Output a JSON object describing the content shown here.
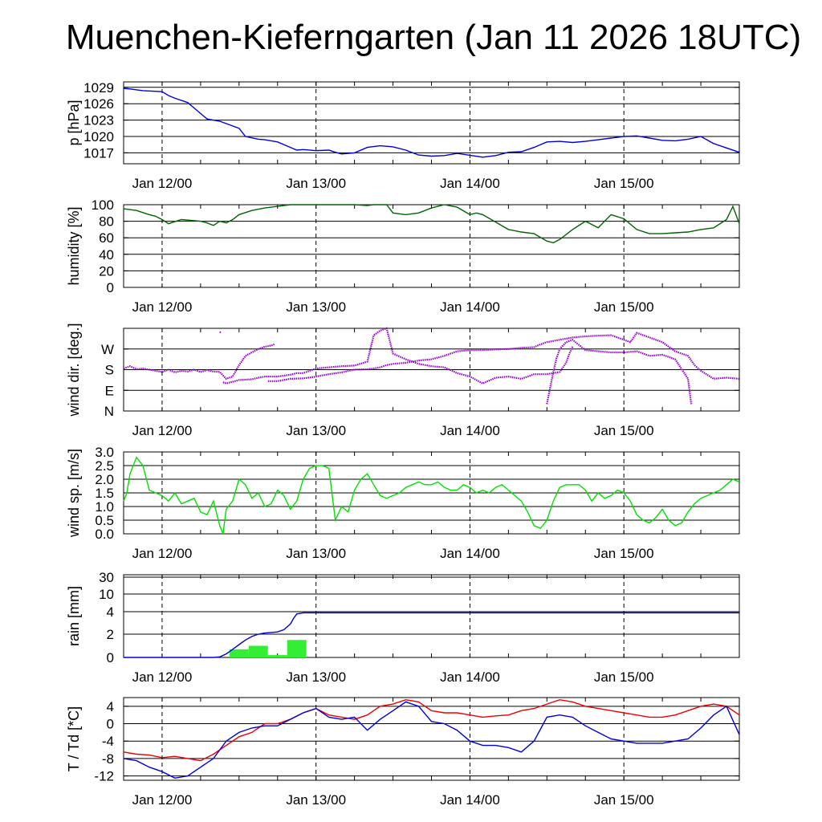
{
  "title": "Muenchen-Kieferngarten (Jan 11 2026 18UTC)",
  "x_tick_labels": [
    "Jan 12/00",
    "Jan 13/00",
    "Jan 14/00",
    "Jan 15/00"
  ],
  "colors": {
    "pressure": "#0000dd",
    "humidity": "#006400",
    "wind_dir": "#9400d3",
    "wind_speed": "#00e000",
    "rain_line": "#0000dd",
    "rain_bar": "#33ee33",
    "temperature": "#ee0000",
    "dewpoint": "#0000dd"
  },
  "chart_data": [
    {
      "type": "line",
      "id": "pressure",
      "ylabel": "p [hPa]",
      "ylim": [
        1015,
        1030
      ],
      "yticks": [
        1017,
        1020,
        1023,
        1026,
        1029
      ],
      "ytick_labels": [
        "1017",
        "1020",
        "1023",
        "1026",
        "1029"
      ],
      "x_hours": "hours from Jan 11 18UTC (0..96)",
      "series": [
        {
          "name": "pressure",
          "x": [
            0,
            1,
            3,
            6,
            7,
            8,
            10,
            11,
            12,
            13,
            15,
            18,
            19,
            21,
            22,
            24,
            26,
            27,
            28,
            30,
            32,
            33,
            34,
            36,
            38,
            40,
            42,
            44,
            46,
            48,
            50,
            52,
            56,
            58,
            60,
            62,
            64,
            66,
            68,
            70,
            72,
            74,
            76,
            78,
            80,
            82,
            84,
            86,
            88,
            90,
            92,
            94,
            96
          ],
          "values": [
            1028.8,
            1028.7,
            1028.4,
            1028.2,
            1027.5,
            1027,
            1026.2,
            1025.2,
            1024.2,
            1023.2,
            1022.8,
            1021.5,
            1020,
            1019.5,
            1019.4,
            1019,
            1018,
            1017.5,
            1017.6,
            1017.4,
            1017.5,
            1017.1,
            1016.8,
            1017,
            1018,
            1018.3,
            1018.1,
            1017.5,
            1016.6,
            1016.4,
            1016.5,
            1016.9,
            1016.2,
            1016.5,
            1017.1,
            1017.2,
            1018,
            1019,
            1019.1,
            1018.9,
            1019.1,
            1019.4,
            1019.7,
            1020,
            1020.1,
            1019.7,
            1019.3,
            1019.2,
            1019.5,
            1020,
            1018.7,
            1017.9,
            1017.1
          ]
        }
      ]
    },
    {
      "type": "line",
      "id": "humidity",
      "ylabel": "humidity [%]",
      "ylim": [
        0,
        100
      ],
      "yticks": [
        0,
        20,
        40,
        60,
        80,
        100
      ],
      "ytick_labels": [
        "0",
        "20",
        "40",
        "60",
        "80",
        "100"
      ],
      "series": [
        {
          "name": "humidity",
          "x": [
            0,
            2,
            4,
            5,
            6,
            7,
            9,
            12,
            13,
            14,
            15,
            16,
            17,
            18,
            20,
            22,
            24,
            26,
            28,
            30,
            32,
            34,
            36,
            38,
            39,
            40,
            41,
            42,
            44,
            46,
            48,
            50,
            52,
            54,
            55,
            56,
            58,
            60,
            62,
            64,
            66,
            67,
            68,
            70,
            72,
            74,
            76,
            78,
            80,
            82,
            84,
            86,
            88,
            90,
            92,
            94,
            95,
            96
          ],
          "values": [
            95,
            93,
            88,
            86,
            82,
            77,
            82,
            80,
            78,
            75,
            80,
            78,
            82,
            88,
            93,
            96,
            98,
            100,
            100,
            100,
            100,
            100,
            100,
            99,
            100,
            100,
            100,
            90,
            88,
            90,
            96,
            100,
            97,
            88,
            90,
            88,
            79,
            70,
            67,
            65,
            56,
            54,
            58,
            70,
            80,
            72,
            88,
            83,
            70,
            65,
            65,
            66,
            67,
            70,
            72,
            82,
            98,
            77
          ]
        }
      ]
    },
    {
      "type": "scatter",
      "id": "wind_direction",
      "ylabel": "wind dir. [deg.]",
      "ylim": [
        0,
        360
      ],
      "yticks": [
        0,
        90,
        180,
        270
      ],
      "ytick_labels": [
        "N",
        "E",
        "S",
        "W"
      ],
      "series": [
        {
          "name": "segment_1",
          "x": [
            0,
            1,
            2,
            3,
            4,
            5,
            6,
            7,
            8,
            9,
            10,
            11,
            12,
            13,
            14,
            15,
            16,
            17,
            18,
            19,
            20,
            21,
            22,
            23,
            23.5
          ],
          "values": [
            185,
            195,
            182,
            185,
            180,
            175,
            170,
            180,
            168,
            175,
            172,
            180,
            170,
            178,
            172,
            170,
            140,
            150,
            200,
            240,
            255,
            270,
            280,
            285,
            290
          ]
        },
        {
          "name": "segment_2",
          "x": [
            15,
            15.2
          ],
          "values": [
            345,
            340
          ]
        },
        {
          "name": "segment_3",
          "x": [
            15.5,
            16,
            18,
            20,
            21,
            22,
            24,
            26,
            27,
            28,
            29,
            30,
            32,
            34,
            36,
            38,
            39,
            40,
            41,
            42,
            44,
            46,
            48,
            50,
            52,
            54,
            56,
            58,
            60,
            62,
            63,
            64,
            65,
            66,
            68,
            69,
            69.5,
            70
          ],
          "values": [
            125,
            120,
            135,
            138,
            145,
            150,
            150,
            158,
            165,
            165,
            175,
            185,
            190,
            195,
            198,
            215,
            330,
            350,
            360,
            250,
            225,
            205,
            195,
            190,
            165,
            150,
            120,
            145,
            150,
            140,
            150,
            160,
            160,
            160,
            170,
            210,
            250,
            280
          ]
        },
        {
          "name": "segment_4",
          "x": [
            66,
            66.5,
            67,
            67.5,
            68,
            69,
            70,
            72,
            74,
            76,
            78,
            80,
            82,
            84,
            86,
            88,
            88.5
          ],
          "values": [
            30,
            100,
            170,
            230,
            270,
            300,
            310,
            265,
            260,
            255,
            255,
            260,
            240,
            245,
            225,
            140,
            30
          ]
        },
        {
          "name": "segment_5",
          "x": [
            22.5,
            24,
            26,
            28,
            30,
            32,
            34,
            36,
            38,
            39,
            40,
            41,
            42,
            44,
            46,
            48,
            50,
            52,
            54,
            56,
            58,
            60,
            62,
            64,
            65,
            66,
            68,
            70,
            72,
            74,
            76,
            77,
            78,
            79,
            80,
            82,
            84,
            86,
            88,
            88.5,
            89,
            90,
            92,
            94,
            96
          ],
          "values": [
            130,
            130,
            140,
            142,
            150,
            160,
            168,
            180,
            182,
            185,
            190,
            200,
            205,
            210,
            220,
            225,
            240,
            260,
            265,
            265,
            268,
            270,
            275,
            278,
            290,
            300,
            310,
            320,
            325,
            328,
            330,
            320,
            310,
            300,
            340,
            320,
            300,
            260,
            240,
            220,
            200,
            175,
            140,
            145,
            140
          ]
        }
      ]
    },
    {
      "type": "line",
      "id": "wind_speed",
      "ylabel": "wind sp. [m/s]",
      "ylim": [
        0,
        3
      ],
      "yticks": [
        0,
        0.5,
        1,
        1.5,
        2,
        2.5,
        3
      ],
      "ytick_labels": [
        "0.0",
        "0.5",
        "1.0",
        "1.5",
        "2.0",
        "2.5",
        "3.0"
      ],
      "series": [
        {
          "name": "wind_speed",
          "x": [
            0,
            0.5,
            1,
            2,
            3,
            4,
            5,
            6,
            7,
            8,
            9,
            10,
            11,
            12,
            13,
            14,
            15,
            15.5,
            16,
            17,
            18,
            19,
            20,
            21,
            22,
            23,
            24,
            25,
            26,
            27,
            28,
            29,
            30,
            31,
            32,
            33,
            34,
            35,
            36,
            37,
            38,
            39,
            40,
            41,
            42,
            43,
            44,
            45,
            46,
            47,
            48,
            49,
            50,
            51,
            52,
            53,
            54,
            55,
            56,
            57,
            58,
            59,
            60,
            61,
            62,
            63,
            64,
            65,
            66,
            67,
            68,
            69,
            70,
            71,
            72,
            73,
            74,
            75,
            76,
            77,
            78,
            79,
            80,
            81,
            82,
            83,
            84,
            85,
            86,
            87,
            88,
            89,
            90,
            91,
            92,
            93,
            94,
            95,
            96
          ],
          "values": [
            1.2,
            1.5,
            2.2,
            2.8,
            2.5,
            1.6,
            1.5,
            1.4,
            1.2,
            1.5,
            1.1,
            1.2,
            1.3,
            0.8,
            0.7,
            1.2,
            0.3,
            0,
            0.9,
            1.2,
            2.0,
            1.8,
            1.3,
            1.5,
            1.0,
            1.1,
            1.6,
            1.4,
            0.9,
            1.2,
            2.0,
            2.4,
            2.5,
            2.5,
            2.4,
            0.5,
            1.0,
            0.8,
            1.6,
            2.0,
            2.2,
            1.8,
            1.4,
            1.3,
            1.4,
            1.5,
            1.7,
            1.8,
            1.9,
            1.8,
            1.8,
            1.9,
            1.7,
            1.6,
            1.6,
            1.8,
            1.7,
            1.5,
            1.6,
            1.5,
            1.7,
            1.8,
            1.6,
            1.4,
            1.2,
            0.8,
            0.3,
            0.2,
            0.5,
            1.2,
            1.7,
            1.8,
            1.8,
            1.8,
            1.6,
            1.2,
            1.5,
            1.3,
            1.4,
            1.6,
            1.5,
            1.2,
            0.7,
            0.5,
            0.4,
            0.6,
            0.9,
            0.5,
            0.3,
            0.4,
            0.8,
            1.1,
            1.3,
            1.4,
            1.5,
            1.6,
            1.8,
            2.0,
            1.9
          ]
        }
      ]
    },
    {
      "type": "bar",
      "id": "rain",
      "ylabel": "rain [mm]",
      "ylim": [
        0,
        30
      ],
      "y_scale": "nonlinear",
      "yticks": [
        0,
        2,
        4,
        10,
        30
      ],
      "ytick_labels": [
        "0",
        "2",
        "4",
        "10",
        "30"
      ],
      "bars": {
        "x_start": [
          16.5,
          19.5,
          22.5,
          25.5
        ],
        "x_end": [
          19.5,
          22.5,
          25.5,
          28.5
        ],
        "values": [
          0.7,
          1.0,
          0.2,
          1.5
        ]
      },
      "series": [
        {
          "name": "accumulated",
          "x": [
            0,
            14,
            15,
            16,
            17,
            18,
            19,
            20,
            21,
            22,
            23,
            24,
            25,
            26,
            26.5,
            27,
            28,
            96
          ],
          "values": [
            0,
            0,
            0.05,
            0.3,
            0.7,
            1.1,
            1.5,
            1.8,
            2.0,
            2.1,
            2.15,
            2.2,
            2.4,
            2.9,
            3.4,
            3.8,
            3.9,
            3.9
          ]
        }
      ]
    },
    {
      "type": "line",
      "id": "temperature_dewpoint",
      "ylabel": "T / Td [*C]",
      "ylim": [
        -13,
        6
      ],
      "yticks": [
        -12,
        -8,
        -4,
        0,
        4
      ],
      "ytick_labels": [
        "-12",
        "-8",
        "-4",
        "0",
        "4"
      ],
      "series": [
        {
          "name": "T",
          "x": [
            0,
            2,
            4,
            6,
            8,
            10,
            12,
            14,
            16,
            18,
            20,
            22,
            24,
            26,
            28,
            30,
            32,
            34,
            36,
            38,
            40,
            42,
            44,
            46,
            48,
            50,
            52,
            54,
            56,
            58,
            60,
            62,
            64,
            66,
            68,
            70,
            72,
            74,
            76,
            78,
            80,
            82,
            84,
            86,
            88,
            90,
            92,
            94,
            96
          ],
          "values": [
            -6.5,
            -7,
            -7.2,
            -7.8,
            -7.5,
            -8,
            -8.5,
            -7,
            -5,
            -3,
            -2,
            0,
            0,
            1,
            2.5,
            3.5,
            2,
            1.5,
            1,
            2,
            4,
            4.5,
            5.5,
            5,
            3,
            2.5,
            2.5,
            2,
            1.5,
            1.8,
            2,
            3,
            3.5,
            4.5,
            5.5,
            5,
            4,
            3.5,
            3,
            2.5,
            2,
            1.5,
            1.5,
            2,
            3,
            4,
            4.5,
            4,
            2
          ]
        },
        {
          "name": "Td",
          "x": [
            0,
            2,
            4,
            6,
            8,
            10,
            12,
            14,
            16,
            18,
            20,
            22,
            24,
            26,
            28,
            30,
            32,
            34,
            36,
            38,
            40,
            42,
            44,
            46,
            48,
            50,
            52,
            54,
            56,
            58,
            60,
            62,
            64,
            66,
            68,
            70,
            72,
            74,
            76,
            78,
            80,
            82,
            84,
            86,
            88,
            90,
            92,
            94,
            96
          ],
          "values": [
            -8,
            -8.5,
            -10,
            -11,
            -12.5,
            -12,
            -10,
            -8,
            -4,
            -2,
            -1,
            -0.5,
            -0.5,
            1,
            2.5,
            3.5,
            1.5,
            1,
            1.5,
            -1.5,
            1,
            3,
            5,
            4,
            0.5,
            0,
            -1.5,
            -4,
            -5,
            -5,
            -5.5,
            -6.5,
            -4,
            1.5,
            2,
            1.5,
            -0.5,
            -2,
            -3.5,
            -4,
            -4.5,
            -4.5,
            -4.5,
            -4,
            -3.5,
            -1,
            2,
            4,
            -2.5
          ]
        }
      ]
    }
  ]
}
